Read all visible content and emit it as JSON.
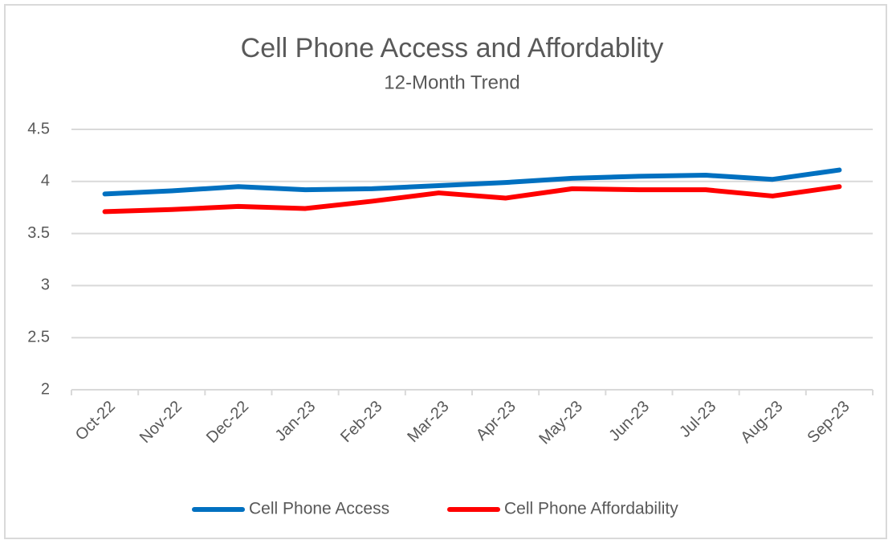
{
  "chart_data": {
    "type": "line",
    "title": "Cell Phone Access and Affordablity",
    "subtitle": "12-Month Trend",
    "categories": [
      "Oct-22",
      "Nov-22",
      "Dec-22",
      "Jan-23",
      "Feb-23",
      "Mar-23",
      "Apr-23",
      "May-23",
      "Jun-23",
      "Jul-23",
      "Aug-23",
      "Sep-23"
    ],
    "series": [
      {
        "name": "Cell Phone Access",
        "color": "#0070c0",
        "values": [
          3.88,
          3.91,
          3.95,
          3.92,
          3.93,
          3.96,
          3.99,
          4.03,
          4.05,
          4.06,
          4.02,
          4.11
        ]
      },
      {
        "name": "Cell Phone Affordability",
        "color": "#ff0000",
        "values": [
          3.71,
          3.73,
          3.76,
          3.74,
          3.81,
          3.89,
          3.84,
          3.93,
          3.92,
          3.92,
          3.86,
          3.95
        ]
      }
    ],
    "ylim": [
      2,
      4.5
    ],
    "yticks": [
      2,
      2.5,
      3,
      3.5,
      4,
      4.5
    ],
    "grid": true,
    "legend": "bottom"
  }
}
